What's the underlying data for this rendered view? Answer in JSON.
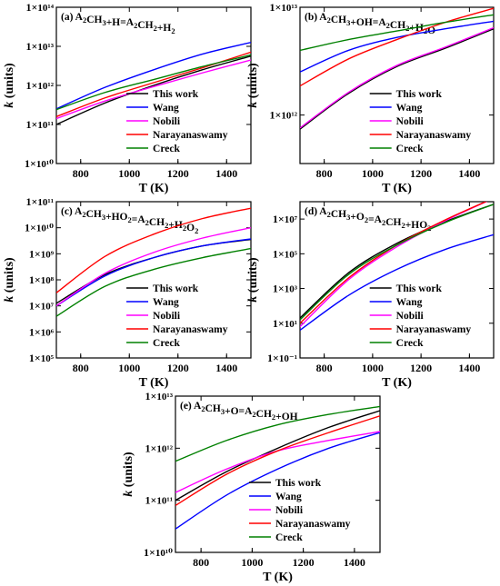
{
  "figure": {
    "legend_entries": [
      "This work",
      "Wang",
      "Nobili",
      "Narayanaswamy",
      "Creck"
    ],
    "series_colors": {
      "This work": "#000000",
      "Wang": "#0000ff",
      "Nobili": "#ff00ff",
      "Narayanaswamy": "#ff0000",
      "Creck": "#008000"
    }
  },
  "chart_data": [
    {
      "type": "line",
      "panel": "a",
      "title_parts": [
        {
          "t": "(a) A"
        },
        {
          "t": "2",
          "sub": true
        },
        {
          "t": "CH"
        },
        {
          "t": "3",
          "sub": true
        },
        {
          "t": "+H=A"
        },
        {
          "t": "2",
          "sub": true
        },
        {
          "t": "CH"
        },
        {
          "t": "2",
          "sub": true
        },
        {
          "t": "+H"
        },
        {
          "t": "2",
          "sub": true
        }
      ],
      "xlabel": "T (K)",
      "ylabel": "k (units)",
      "xlim": [
        700,
        1500
      ],
      "ylim_exp": [
        10,
        14
      ],
      "yscale": "log",
      "x_ticks": [
        800,
        1000,
        1200,
        1400
      ],
      "y_tick_labels": [
        "1×10¹⁰",
        "1×10¹¹",
        "1×10¹²",
        "1×10¹³",
        "1×10¹⁴"
      ],
      "x": [
        700,
        900,
        1100,
        1300,
        1500
      ],
      "legend": "lower-right",
      "series": [
        {
          "name": "This work",
          "log10_values": [
            11.0,
            11.55,
            12.0,
            12.4,
            12.75
          ]
        },
        {
          "name": "Wang",
          "log10_values": [
            11.4,
            11.95,
            12.4,
            12.8,
            13.1
          ]
        },
        {
          "name": "Nobili",
          "log10_values": [
            11.15,
            11.6,
            11.97,
            12.32,
            12.65
          ]
        },
        {
          "name": "Narayanaswamy",
          "log10_values": [
            11.2,
            11.68,
            12.07,
            12.45,
            12.85
          ]
        },
        {
          "name": "Creck",
          "log10_values": [
            11.38,
            11.82,
            12.15,
            12.48,
            12.78
          ]
        }
      ]
    },
    {
      "type": "line",
      "panel": "b",
      "title_parts": [
        {
          "t": "(b) A"
        },
        {
          "t": "2",
          "sub": true
        },
        {
          "t": "CH"
        },
        {
          "t": "3",
          "sub": true
        },
        {
          "t": "+OH=A"
        },
        {
          "t": "2",
          "sub": true
        },
        {
          "t": "CH"
        },
        {
          "t": "2",
          "sub": true
        },
        {
          "t": "+H"
        },
        {
          "t": "2",
          "sub": true
        },
        {
          "t": "O"
        }
      ],
      "xlabel": "T (K)",
      "ylabel": "k (units)",
      "xlim": [
        700,
        1500
      ],
      "ylim_exp": [
        11.55,
        13.0
      ],
      "yscale": "log",
      "x_ticks": [
        800,
        1000,
        1200,
        1400
      ],
      "y_tick_labels": [
        "1×10¹²",
        "1×10¹³"
      ],
      "y_tick_exps": [
        12,
        13
      ],
      "x": [
        700,
        900,
        1100,
        1300,
        1500
      ],
      "legend": "lower-right",
      "series": [
        {
          "name": "This work",
          "log10_values": [
            11.87,
            12.2,
            12.45,
            12.62,
            12.8
          ]
        },
        {
          "name": "Wang",
          "log10_values": [
            12.4,
            12.6,
            12.72,
            12.8,
            12.87
          ]
        },
        {
          "name": "Nobili",
          "log10_values": [
            11.88,
            12.21,
            12.46,
            12.63,
            12.81
          ]
        },
        {
          "name": "Narayanaswamy",
          "log10_values": [
            12.27,
            12.52,
            12.7,
            12.86,
            12.99
          ]
        },
        {
          "name": "Creck",
          "log10_values": [
            12.6,
            12.7,
            12.78,
            12.86,
            12.93
          ]
        }
      ]
    },
    {
      "type": "line",
      "panel": "c",
      "title_parts": [
        {
          "t": "(c) A"
        },
        {
          "t": "2",
          "sub": true
        },
        {
          "t": "CH"
        },
        {
          "t": "3",
          "sub": true
        },
        {
          "t": "+HO"
        },
        {
          "t": "2",
          "sub": true
        },
        {
          "t": "=A"
        },
        {
          "t": "2",
          "sub": true
        },
        {
          "t": "CH"
        },
        {
          "t": "2",
          "sub": true
        },
        {
          "t": "+H"
        },
        {
          "t": "2",
          "sub": true
        },
        {
          "t": "O"
        },
        {
          "t": "2",
          "sub": true
        }
      ],
      "xlabel": "T (K)",
      "ylabel": "k (units)",
      "xlim": [
        700,
        1500
      ],
      "ylim_exp": [
        5,
        11
      ],
      "yscale": "log",
      "x_ticks": [
        800,
        1000,
        1200,
        1400
      ],
      "y_tick_labels": [
        "1×10⁵",
        "1×10⁶",
        "1×10⁷",
        "1×10⁸",
        "1×10⁹",
        "1×10¹⁰",
        "1×10¹¹"
      ],
      "x": [
        700,
        900,
        1100,
        1300,
        1500
      ],
      "legend": "lower-right",
      "series": [
        {
          "name": "This work",
          "log10_values": [
            7.1,
            8.2,
            8.85,
            9.3,
            9.55
          ]
        },
        {
          "name": "Wang",
          "log10_values": [
            7.0,
            8.15,
            8.85,
            9.3,
            9.57
          ]
        },
        {
          "name": "Nobili",
          "log10_values": [
            7.0,
            8.25,
            9.05,
            9.6,
            10.0
          ]
        },
        {
          "name": "Narayanaswamy",
          "log10_values": [
            7.5,
            8.9,
            9.75,
            10.35,
            10.75
          ]
        },
        {
          "name": "Creck",
          "log10_values": [
            6.6,
            7.75,
            8.4,
            8.85,
            9.2
          ]
        }
      ]
    },
    {
      "type": "line",
      "panel": "d",
      "title_parts": [
        {
          "t": "(d) A"
        },
        {
          "t": "2",
          "sub": true
        },
        {
          "t": "CH"
        },
        {
          "t": "3",
          "sub": true
        },
        {
          "t": "+O"
        },
        {
          "t": "2",
          "sub": true
        },
        {
          "t": "=A"
        },
        {
          "t": "2",
          "sub": true
        },
        {
          "t": "CH"
        },
        {
          "t": "2",
          "sub": true
        },
        {
          "t": "+HO"
        },
        {
          "t": "2",
          "sub": true
        }
      ],
      "xlabel": "T (K)",
      "ylabel": "k (units)",
      "xlim": [
        700,
        1500
      ],
      "ylim_exp": [
        -1,
        8
      ],
      "yscale": "log",
      "x_ticks": [
        800,
        1000,
        1200,
        1400
      ],
      "y_tick_labels": [
        "1×10⁻¹",
        "1×10¹",
        "1×10³",
        "1×10⁵",
        "1×10⁷"
      ],
      "y_tick_exps": [
        -1,
        1,
        3,
        5,
        7
      ],
      "x": [
        700,
        900,
        1100,
        1300,
        1500
      ],
      "legend": "lower-right",
      "series": [
        {
          "name": "This work",
          "log10_values": [
            1.3,
            3.9,
            5.6,
            6.85,
            7.85
          ]
        },
        {
          "name": "Wang",
          "log10_values": [
            0.6,
            2.6,
            4.1,
            5.25,
            6.1
          ]
        },
        {
          "name": "Nobili",
          "log10_values": [
            0.8,
            3.5,
            5.4,
            6.9,
            8.2
          ]
        },
        {
          "name": "Narayanaswamy",
          "log10_values": [
            1.0,
            3.6,
            5.5,
            6.95,
            8.2
          ]
        },
        {
          "name": "Creck",
          "log10_values": [
            1.2,
            3.8,
            5.5,
            6.8,
            7.85
          ]
        }
      ]
    },
    {
      "type": "line",
      "panel": "e",
      "title_parts": [
        {
          "t": "(e) A"
        },
        {
          "t": "2",
          "sub": true
        },
        {
          "t": "CH"
        },
        {
          "t": "3",
          "sub": true
        },
        {
          "t": "+O=A"
        },
        {
          "t": "2",
          "sub": true
        },
        {
          "t": "CH"
        },
        {
          "t": "2",
          "sub": true
        },
        {
          "t": "+OH"
        }
      ],
      "xlabel": "T (K)",
      "ylabel": "k (units)",
      "xlim": [
        700,
        1500
      ],
      "ylim_exp": [
        10,
        13
      ],
      "yscale": "log",
      "x_ticks": [
        800,
        1000,
        1200,
        1400
      ],
      "y_tick_labels": [
        "1×10¹⁰",
        "1×10¹¹",
        "1×10¹²",
        "1×10¹³"
      ],
      "x": [
        700,
        900,
        1100,
        1300,
        1500
      ],
      "legend": "lower-right",
      "series": [
        {
          "name": "This work",
          "log10_values": [
            11.0,
            11.55,
            12.0,
            12.4,
            12.72
          ]
        },
        {
          "name": "Wang",
          "log10_values": [
            10.45,
            11.1,
            11.6,
            12.0,
            12.3
          ]
        },
        {
          "name": "Nobili",
          "log10_values": [
            11.15,
            11.6,
            11.95,
            12.15,
            12.32
          ]
        },
        {
          "name": "Narayanaswamy",
          "log10_values": [
            10.9,
            11.5,
            11.95,
            12.3,
            12.62
          ]
        },
        {
          "name": "Creck",
          "log10_values": [
            11.75,
            12.15,
            12.45,
            12.65,
            12.8
          ]
        }
      ]
    }
  ]
}
